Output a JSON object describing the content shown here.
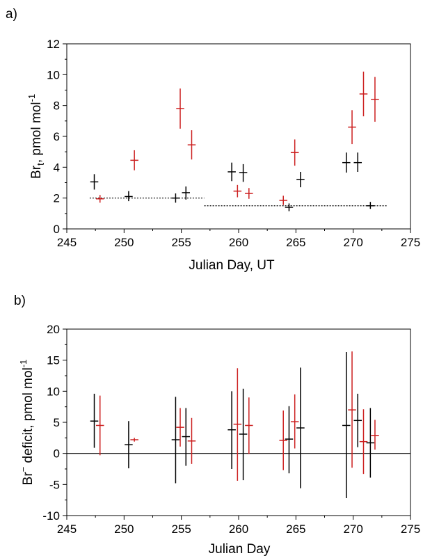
{
  "colors": {
    "black": "#000000",
    "red": "#cc1f1f"
  },
  "chart_data": [
    {
      "panel_label": "a)",
      "type": "scatter",
      "xlabel": "Julian Day, UT",
      "ylabel": "Brt, pmol mol-1",
      "ylabel_parts": {
        "base": "Br",
        "sub": "t",
        "rest": ", pmol mol",
        "sup": "-1"
      },
      "xlim": [
        245,
        275
      ],
      "ylim": [
        0,
        12
      ],
      "xticks": [
        245,
        250,
        255,
        260,
        265,
        270,
        275
      ],
      "yticks": [
        0,
        2,
        4,
        6,
        8,
        10,
        12
      ],
      "series": [
        {
          "color": "black",
          "points": [
            {
              "x": 247.4,
              "y": 3.05,
              "lo": 2.55,
              "hi": 3.55,
              "xerr": 0.35
            },
            {
              "x": 250.4,
              "y": 2.1,
              "lo": 1.8,
              "hi": 2.45,
              "xerr": 0.35
            },
            {
              "x": 254.5,
              "y": 2.0,
              "lo": 1.7,
              "hi": 2.3,
              "xerr": 0.35
            },
            {
              "x": 255.4,
              "y": 2.35,
              "lo": 1.9,
              "hi": 2.75,
              "xerr": 0.35
            },
            {
              "x": 259.4,
              "y": 3.7,
              "lo": 3.1,
              "hi": 4.3,
              "xerr": 0.35
            },
            {
              "x": 260.4,
              "y": 3.65,
              "lo": 3.05,
              "hi": 4.2,
              "xerr": 0.35
            },
            {
              "x": 264.4,
              "y": 1.4,
              "lo": 1.15,
              "hi": 1.65,
              "xerr": 0.35
            },
            {
              "x": 265.4,
              "y": 3.2,
              "lo": 2.7,
              "hi": 3.7,
              "xerr": 0.35
            },
            {
              "x": 269.4,
              "y": 4.3,
              "lo": 3.65,
              "hi": 4.95,
              "xerr": 0.35
            },
            {
              "x": 270.4,
              "y": 4.3,
              "lo": 3.7,
              "hi": 4.95,
              "xerr": 0.35
            },
            {
              "x": 271.5,
              "y": 1.5,
              "lo": 1.3,
              "hi": 1.75,
              "xerr": 0.35
            }
          ]
        },
        {
          "color": "red",
          "points": [
            {
              "x": 247.9,
              "y": 1.95,
              "lo": 1.7,
              "hi": 2.2,
              "xerr": 0.35
            },
            {
              "x": 250.9,
              "y": 4.45,
              "lo": 3.8,
              "hi": 5.1,
              "xerr": 0.35
            },
            {
              "x": 254.9,
              "y": 7.8,
              "lo": 6.5,
              "hi": 9.1,
              "xerr": 0.35
            },
            {
              "x": 255.9,
              "y": 5.45,
              "lo": 4.5,
              "hi": 6.4,
              "xerr": 0.35
            },
            {
              "x": 259.9,
              "y": 2.45,
              "lo": 2.05,
              "hi": 2.85,
              "xerr": 0.35
            },
            {
              "x": 260.9,
              "y": 2.3,
              "lo": 1.95,
              "hi": 2.65,
              "xerr": 0.35
            },
            {
              "x": 263.9,
              "y": 1.85,
              "lo": 1.55,
              "hi": 2.15,
              "xerr": 0.35
            },
            {
              "x": 264.9,
              "y": 4.95,
              "lo": 4.1,
              "hi": 5.8,
              "xerr": 0.35
            },
            {
              "x": 269.9,
              "y": 6.6,
              "lo": 5.5,
              "hi": 7.7,
              "xerr": 0.35
            },
            {
              "x": 270.9,
              "y": 8.75,
              "lo": 7.3,
              "hi": 10.2,
              "xerr": 0.35
            },
            {
              "x": 271.9,
              "y": 8.4,
              "lo": 6.95,
              "hi": 9.85,
              "xerr": 0.35
            }
          ]
        }
      ],
      "reference_lines": [
        {
          "style": "dotted",
          "x0": 247.0,
          "x1": 257.0,
          "y": 2.0
        },
        {
          "style": "dotted",
          "x0": 257.0,
          "x1": 273.0,
          "y": 1.5
        }
      ]
    },
    {
      "panel_label": "b)",
      "type": "scatter",
      "xlabel": "Julian Day",
      "ylabel": "Br- deficit, pmol mol-1",
      "ylabel_parts": {
        "base": "Br",
        "sup1": "−",
        "rest": " deficit, pmol mol",
        "sup": "-1"
      },
      "xlim": [
        245,
        275
      ],
      "ylim": [
        -10,
        20
      ],
      "xticks": [
        245,
        250,
        255,
        260,
        265,
        270,
        275
      ],
      "yticks": [
        -10,
        -5,
        0,
        5,
        10,
        15,
        20
      ],
      "zero_line": 0,
      "series": [
        {
          "color": "black",
          "points": [
            {
              "x": 247.4,
              "y": 5.2,
              "lo": 0.9,
              "hi": 9.6,
              "xerr": 0.35
            },
            {
              "x": 250.4,
              "y": 1.4,
              "lo": -2.4,
              "hi": 5.2,
              "xerr": 0.35
            },
            {
              "x": 254.5,
              "y": 2.2,
              "lo": -4.8,
              "hi": 9.1,
              "xerr": 0.35
            },
            {
              "x": 255.4,
              "y": 2.7,
              "lo": -2.0,
              "hi": 7.3,
              "xerr": 0.35
            },
            {
              "x": 259.4,
              "y": 3.8,
              "lo": -2.5,
              "hi": 10.0,
              "xerr": 0.35
            },
            {
              "x": 260.4,
              "y": 3.1,
              "lo": -4.3,
              "hi": 10.4,
              "xerr": 0.35
            },
            {
              "x": 264.4,
              "y": 2.3,
              "lo": -3.2,
              "hi": 7.6,
              "xerr": 0.35
            },
            {
              "x": 265.4,
              "y": 4.1,
              "lo": -5.6,
              "hi": 13.8,
              "xerr": 0.35
            },
            {
              "x": 269.4,
              "y": 4.5,
              "lo": -7.2,
              "hi": 16.3,
              "xerr": 0.35
            },
            {
              "x": 270.4,
              "y": 5.3,
              "lo": 1.0,
              "hi": 9.6,
              "xerr": 0.35
            },
            {
              "x": 271.5,
              "y": 1.7,
              "lo": -3.9,
              "hi": 7.3,
              "xerr": 0.35
            }
          ]
        },
        {
          "color": "red",
          "points": [
            {
              "x": 247.9,
              "y": 4.5,
              "lo": -0.3,
              "hi": 9.3,
              "xerr": 0.35
            },
            {
              "x": 250.9,
              "y": 2.2,
              "lo": 1.9,
              "hi": 2.5,
              "xerr": 0.35
            },
            {
              "x": 254.9,
              "y": 4.2,
              "lo": 1.1,
              "hi": 7.3,
              "xerr": 0.35
            },
            {
              "x": 255.9,
              "y": 2.0,
              "lo": -1.7,
              "hi": 5.7,
              "xerr": 0.35
            },
            {
              "x": 259.9,
              "y": 4.7,
              "lo": -4.4,
              "hi": 13.7,
              "xerr": 0.35
            },
            {
              "x": 260.9,
              "y": 4.5,
              "lo": -0.1,
              "hi": 9.0,
              "xerr": 0.35
            },
            {
              "x": 263.9,
              "y": 2.1,
              "lo": -2.7,
              "hi": 6.9,
              "xerr": 0.35
            },
            {
              "x": 264.9,
              "y": 5.1,
              "lo": 0.8,
              "hi": 9.5,
              "xerr": 0.35
            },
            {
              "x": 269.9,
              "y": 7.0,
              "lo": -2.3,
              "hi": 16.4,
              "xerr": 0.35
            },
            {
              "x": 270.9,
              "y": 1.9,
              "lo": -3.3,
              "hi": 7.1,
              "xerr": 0.35
            },
            {
              "x": 271.9,
              "y": 2.9,
              "lo": 0.6,
              "hi": 5.4,
              "xerr": 0.35
            }
          ]
        }
      ]
    }
  ]
}
